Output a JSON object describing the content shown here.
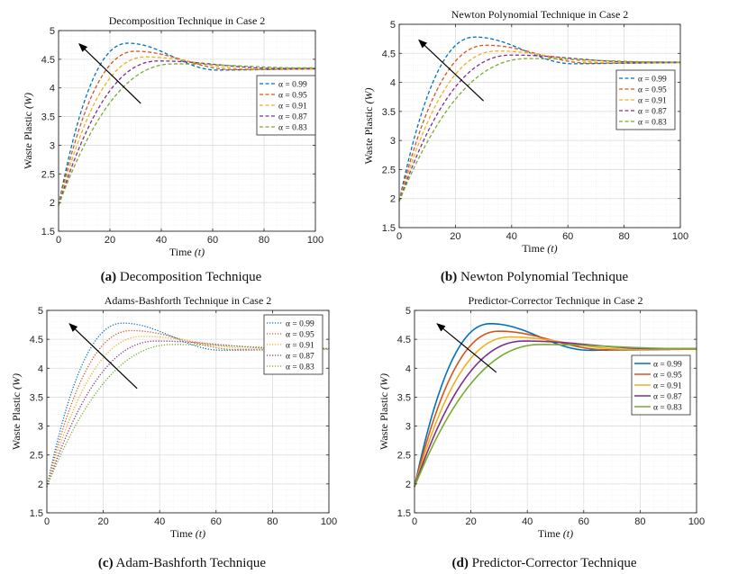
{
  "figure": {
    "captions": [
      {
        "tag": "(a)",
        "text": "Decomposition Technique"
      },
      {
        "tag": "(b)",
        "text": "Newton Polynomial Technique"
      },
      {
        "tag": "(c)",
        "text": "Adam-Bashforth Technique"
      },
      {
        "tag": "(d)",
        "text": "Predictor-Corrector Technique"
      }
    ]
  },
  "chart_data": [
    {
      "type": "line",
      "title": "Decomposition Technique in Case 2",
      "xlabel": "Time",
      "xlabel_var": "(t)",
      "ylabel": "Waste Plastic",
      "ylabel_var": "(W)",
      "xlim": [
        0,
        100
      ],
      "ylim": [
        1.5,
        5
      ],
      "xticks": [
        0,
        20,
        40,
        60,
        80,
        100
      ],
      "yticks": [
        1.5,
        2,
        2.5,
        3,
        3.5,
        4,
        4.5,
        5
      ],
      "grid": true,
      "line_style": "dashed",
      "legend_position": "right-middle",
      "arrow": {
        "from": [
          32,
          3.73
        ],
        "to": [
          8,
          4.77
        ]
      },
      "series": [
        {
          "name": "α = 0.99",
          "color": "#0072BD",
          "peak_t": 27,
          "peak_w": 4.78,
          "w0": 1.95,
          "w_final": 4.33,
          "w_trough": 4.31,
          "trough_t": 62
        },
        {
          "name": "α = 0.95",
          "color": "#D95319",
          "peak_t": 30,
          "peak_w": 4.64,
          "w0": 1.95,
          "w_final": 4.33,
          "w_trough": 4.32,
          "trough_t": 68
        },
        {
          "name": "α = 0.91",
          "color": "#EDB120",
          "peak_t": 34,
          "peak_w": 4.54,
          "w0": 1.95,
          "w_final": 4.33,
          "w_trough": 4.33,
          "trough_t": 75
        },
        {
          "name": "α = 0.87",
          "color": "#7E2F8E",
          "peak_t": 39,
          "peak_w": 4.47,
          "w0": 1.95,
          "w_final": 4.34,
          "w_trough": 4.34,
          "trough_t": 85
        },
        {
          "name": "α = 0.83",
          "color": "#77AC30",
          "peak_t": 45,
          "peak_w": 4.42,
          "w0": 1.95,
          "w_final": 4.35,
          "w_trough": 4.35,
          "trough_t": 95
        }
      ]
    },
    {
      "type": "line",
      "title": "Newton Polynomial Technique in Case 2",
      "xlabel": "Time",
      "xlabel_var": "(t)",
      "ylabel": "Waste Plastic",
      "ylabel_var": "(W)",
      "xlim": [
        0,
        100
      ],
      "ylim": [
        1.5,
        5
      ],
      "xticks": [
        0,
        20,
        40,
        60,
        80,
        100
      ],
      "yticks": [
        1.5,
        2,
        2.5,
        3,
        3.5,
        4,
        4.5,
        5
      ],
      "grid": true,
      "line_style": "dashed",
      "legend_position": "right-middle",
      "arrow": {
        "from": [
          30,
          3.68
        ],
        "to": [
          7,
          4.73
        ]
      },
      "series": [
        {
          "name": "α = 0.99",
          "color": "#0072BD",
          "peak_t": 27,
          "peak_w": 4.78,
          "w0": 1.95,
          "w_final": 4.34,
          "w_trough": 4.32,
          "trough_t": 62
        },
        {
          "name": "α = 0.95",
          "color": "#D95319",
          "peak_t": 31,
          "peak_w": 4.64,
          "w0": 1.95,
          "w_final": 4.34,
          "w_trough": 4.33,
          "trough_t": 68
        },
        {
          "name": "α = 0.91",
          "color": "#EDB120",
          "peak_t": 35,
          "peak_w": 4.54,
          "w0": 1.95,
          "w_final": 4.34,
          "w_trough": 4.34,
          "trough_t": 75
        },
        {
          "name": "α = 0.87",
          "color": "#7E2F8E",
          "peak_t": 40,
          "peak_w": 4.47,
          "w0": 1.95,
          "w_final": 4.35,
          "w_trough": 4.35,
          "trough_t": 85
        },
        {
          "name": "α = 0.83",
          "color": "#77AC30",
          "peak_t": 46,
          "peak_w": 4.41,
          "w0": 1.95,
          "w_final": 4.35,
          "w_trough": 4.35,
          "trough_t": 95
        }
      ]
    },
    {
      "type": "line",
      "title": "Adams-Bashforth Technique in Case 2",
      "xlabel": "Time",
      "xlabel_var": "(t)",
      "ylabel": "Waste Plastic",
      "ylabel_var": "(W)",
      "xlim": [
        0,
        100
      ],
      "ylim": [
        1.5,
        5
      ],
      "xticks": [
        0,
        20,
        40,
        60,
        80,
        100
      ],
      "yticks": [
        1.5,
        2,
        2.5,
        3,
        3.5,
        4,
        4.5,
        5
      ],
      "grid": true,
      "line_style": "dotted",
      "legend_position": "top-right",
      "arrow": {
        "from": [
          32,
          3.65
        ],
        "to": [
          8,
          4.77
        ]
      },
      "series": [
        {
          "name": "α = 0.99",
          "color": "#0072BD",
          "peak_t": 27,
          "peak_w": 4.78,
          "w0": 1.95,
          "w_final": 4.33,
          "w_trough": 4.31,
          "trough_t": 62
        },
        {
          "name": "α = 0.95",
          "color": "#D95319",
          "peak_t": 30,
          "peak_w": 4.65,
          "w0": 1.95,
          "w_final": 4.33,
          "w_trough": 4.32,
          "trough_t": 68
        },
        {
          "name": "α = 0.91",
          "color": "#EDB120",
          "peak_t": 34,
          "peak_w": 4.55,
          "w0": 1.95,
          "w_final": 4.33,
          "w_trough": 4.33,
          "trough_t": 75
        },
        {
          "name": "α = 0.87",
          "color": "#7E2F8E",
          "peak_t": 39,
          "peak_w": 4.47,
          "w0": 1.95,
          "w_final": 4.34,
          "w_trough": 4.34,
          "trough_t": 85
        },
        {
          "name": "α = 0.83",
          "color": "#77AC30",
          "peak_t": 45,
          "peak_w": 4.41,
          "w0": 1.95,
          "w_final": 4.34,
          "w_trough": 4.34,
          "trough_t": 95
        }
      ]
    },
    {
      "type": "line",
      "title": "Predictor-Corrector Technique in Case 2",
      "xlabel": "Time",
      "xlabel_var": "(t)",
      "ylabel": "Waste Plastic",
      "ylabel_var": "(W)",
      "xlim": [
        0,
        100
      ],
      "ylim": [
        1.5,
        5
      ],
      "xticks": [
        0,
        20,
        40,
        60,
        80,
        100
      ],
      "yticks": [
        1.5,
        2,
        2.5,
        3,
        3.5,
        4,
        4.5,
        5
      ],
      "grid": true,
      "line_style": "solid",
      "legend_position": "right-middle",
      "arrow": {
        "from": [
          29,
          3.93
        ],
        "to": [
          8,
          4.77
        ]
      },
      "series": [
        {
          "name": "α = 0.99",
          "color": "#0072BD",
          "peak_t": 27,
          "peak_w": 4.77,
          "w0": 1.95,
          "w_final": 4.33,
          "w_trough": 4.31,
          "trough_t": 62
        },
        {
          "name": "α = 0.95",
          "color": "#D95319",
          "peak_t": 30,
          "peak_w": 4.64,
          "w0": 1.95,
          "w_final": 4.33,
          "w_trough": 4.32,
          "trough_t": 68
        },
        {
          "name": "α = 0.91",
          "color": "#EDB120",
          "peak_t": 34,
          "peak_w": 4.54,
          "w0": 1.95,
          "w_final": 4.33,
          "w_trough": 4.33,
          "trough_t": 75
        },
        {
          "name": "α = 0.87",
          "color": "#7E2F8E",
          "peak_t": 39,
          "peak_w": 4.47,
          "w0": 1.95,
          "w_final": 4.34,
          "w_trough": 4.34,
          "trough_t": 85
        },
        {
          "name": "α = 0.83",
          "color": "#77AC30",
          "peak_t": 45,
          "peak_w": 4.41,
          "w0": 1.95,
          "w_final": 4.34,
          "w_trough": 4.34,
          "trough_t": 95
        }
      ]
    }
  ]
}
